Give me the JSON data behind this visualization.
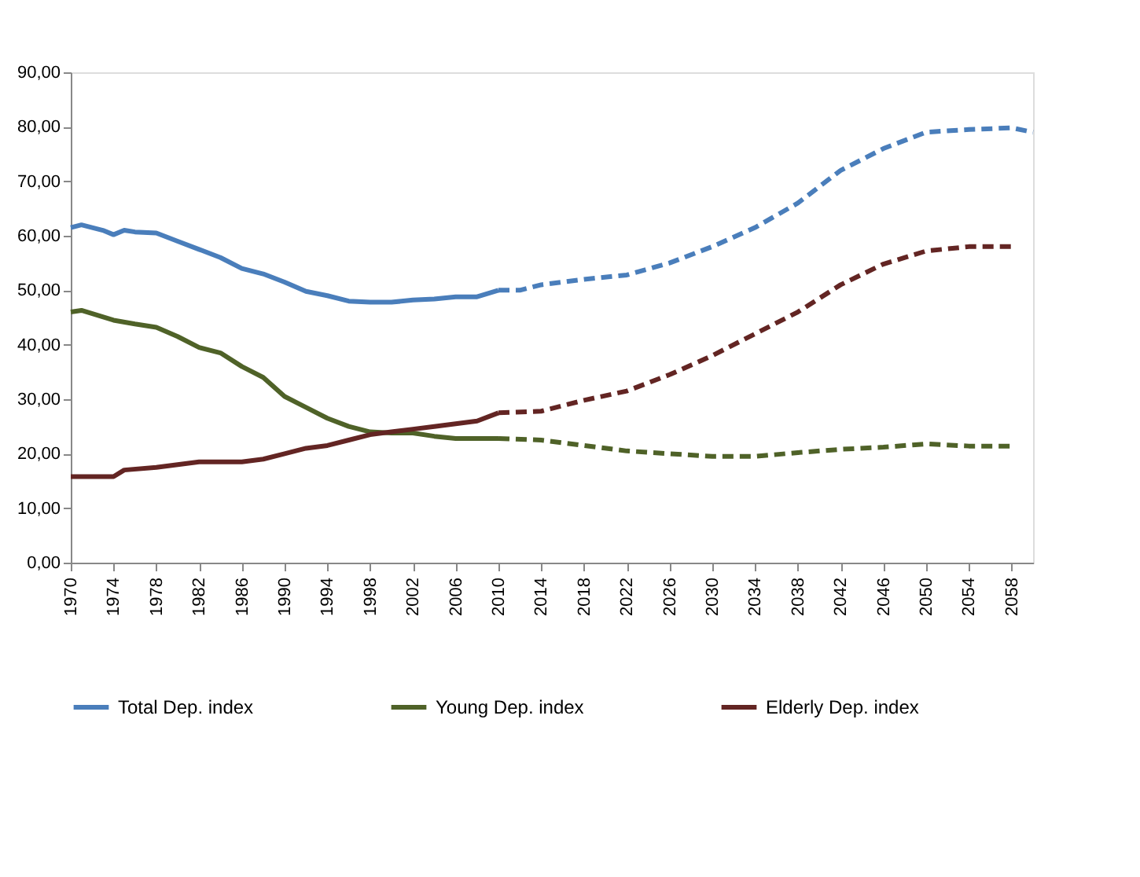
{
  "chart_data": {
    "type": "line",
    "xlim": [
      1970,
      2060
    ],
    "xticks": [
      1970,
      1974,
      1978,
      1982,
      1986,
      1990,
      1994,
      1998,
      2002,
      2006,
      2010,
      2014,
      2018,
      2022,
      2026,
      2030,
      2034,
      2038,
      2042,
      2046,
      2050,
      2054,
      2058
    ],
    "ylim": [
      0,
      90
    ],
    "yticks": [
      {
        "value": 0,
        "label": "0,00"
      },
      {
        "value": 10,
        "label": "10,00"
      },
      {
        "value": 20,
        "label": "20,00"
      },
      {
        "value": 30,
        "label": "30,00"
      },
      {
        "value": 40,
        "label": "40,00"
      },
      {
        "value": 50,
        "label": "50,00"
      },
      {
        "value": 60,
        "label": "60,00"
      },
      {
        "value": 70,
        "label": "70,00"
      },
      {
        "value": 80,
        "label": "80,00"
      },
      {
        "value": 90,
        "label": "90,00"
      }
    ],
    "grid": false,
    "legend": "bottom",
    "marker": "none",
    "series": [
      {
        "name": "Total Dep. index",
        "color": "#4a7ebb",
        "line_style": "solid",
        "x": [
          1970,
          1971,
          1973,
          1974,
          1975,
          1976,
          1978,
          1980,
          1982,
          1984,
          1986,
          1988,
          1990,
          1992,
          1994,
          1996,
          1998,
          2000,
          2002,
          2004,
          2006,
          2008,
          2010
        ],
        "values": [
          61.5,
          62,
          61,
          60.2,
          61,
          60.7,
          60.5,
          59,
          57.5,
          56,
          54,
          53,
          51.5,
          49.8,
          49,
          48,
          47.8,
          47.8,
          48.2,
          48.4,
          48.8,
          48.8,
          50
        ]
      },
      {
        "name": "Young Dep. index",
        "color": "#4f6228",
        "line_style": "solid",
        "x": [
          1970,
          1971,
          1974,
          1976,
          1978,
          1980,
          1982,
          1984,
          1986,
          1988,
          1990,
          1992,
          1994,
          1996,
          1998,
          2000,
          2002,
          2004,
          2006,
          2008,
          2010
        ],
        "values": [
          46,
          46.3,
          44.5,
          43.8,
          43.2,
          41.5,
          39.5,
          38.5,
          36,
          34,
          30.5,
          28.5,
          26.5,
          25,
          24,
          23.8,
          23.8,
          23.2,
          22.8,
          22.8,
          22.8
        ]
      },
      {
        "name": "Elderly Dep. index",
        "color": "#632523",
        "line_style": "solid",
        "x": [
          1970,
          1974,
          1975,
          1978,
          1980,
          1982,
          1986,
          1988,
          1990,
          1992,
          1994,
          1996,
          1998,
          2000,
          2002,
          2004,
          2006,
          2008,
          2010
        ],
        "values": [
          15.8,
          15.8,
          17,
          17.5,
          18,
          18.5,
          18.5,
          19,
          20,
          21,
          21.5,
          22.5,
          23.5,
          24,
          24.5,
          25,
          25.5,
          26,
          27.5
        ]
      },
      {
        "color": "#4a7ebb",
        "line_style": "dashed",
        "x": [
          2010,
          2012,
          2014,
          2018,
          2022,
          2026,
          2030,
          2034,
          2038,
          2042,
          2046,
          2050,
          2054,
          2058,
          2060
        ],
        "values": [
          50,
          50,
          51,
          52,
          52.8,
          55,
          58,
          61.5,
          66,
          72,
          76,
          79,
          79.5,
          79.8,
          79
        ]
      },
      {
        "color": "#4f6228",
        "line_style": "dashed",
        "x": [
          2010,
          2014,
          2018,
          2022,
          2026,
          2030,
          2034,
          2038,
          2042,
          2046,
          2050,
          2054,
          2058
        ],
        "values": [
          22.8,
          22.5,
          21.5,
          20.5,
          20,
          19.5,
          19.5,
          20.2,
          20.8,
          21.2,
          21.8,
          21.4,
          21.4
        ]
      },
      {
        "color": "#632523",
        "line_style": "dashed",
        "x": [
          2010,
          2014,
          2018,
          2022,
          2026,
          2030,
          2034,
          2038,
          2042,
          2046,
          2050,
          2054,
          2058
        ],
        "values": [
          27.5,
          27.8,
          29.8,
          31.5,
          34.5,
          38,
          42,
          46,
          51,
          54.8,
          57.2,
          58,
          58
        ]
      }
    ]
  }
}
